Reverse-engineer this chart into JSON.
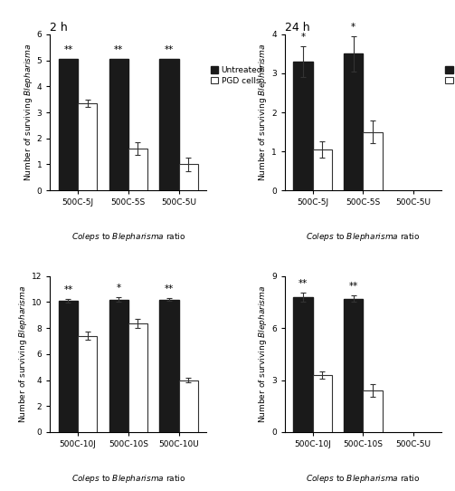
{
  "subplots": [
    {
      "title": "2 h",
      "ylim": [
        0,
        6
      ],
      "yticks": [
        0,
        1,
        2,
        3,
        4,
        5,
        6
      ],
      "groups": [
        "500C-5J",
        "500C-5S",
        "500C-5U"
      ],
      "untreated_vals": [
        5.05,
        5.05,
        5.05
      ],
      "untreated_err": [
        0.0,
        0.0,
        0.0
      ],
      "pgd_vals": [
        3.35,
        1.6,
        1.0
      ],
      "pgd_err": [
        0.15,
        0.25,
        0.25
      ],
      "sig_labels": [
        "**",
        "**",
        "**"
      ],
      "show_legend": true,
      "has_pgd": [
        true,
        true,
        true
      ],
      "has_untreated": [
        true,
        true,
        true
      ]
    },
    {
      "title": "24 h",
      "ylim": [
        0,
        4
      ],
      "yticks": [
        0,
        1,
        2,
        3,
        4
      ],
      "groups": [
        "500C-5J",
        "500C-5S",
        "500C-5U"
      ],
      "untreated_vals": [
        3.3,
        3.5,
        0
      ],
      "untreated_err": [
        0.4,
        0.45,
        0
      ],
      "pgd_vals": [
        1.05,
        1.5,
        0
      ],
      "pgd_err": [
        0.2,
        0.3,
        0
      ],
      "sig_labels": [
        "*",
        "*",
        ""
      ],
      "show_legend": true,
      "has_pgd": [
        true,
        true,
        false
      ],
      "has_untreated": [
        true,
        true,
        false
      ]
    },
    {
      "title": "",
      "ylim": [
        0,
        12
      ],
      "yticks": [
        0,
        2,
        4,
        6,
        8,
        10,
        12
      ],
      "groups": [
        "500C-10J",
        "500C-10S",
        "500C-10U"
      ],
      "untreated_vals": [
        10.1,
        10.2,
        10.2
      ],
      "untreated_err": [
        0.12,
        0.15,
        0.12
      ],
      "pgd_vals": [
        7.4,
        8.35,
        4.0
      ],
      "pgd_err": [
        0.3,
        0.35,
        0.2
      ],
      "sig_labels": [
        "**",
        "*",
        "**"
      ],
      "show_legend": false,
      "has_pgd": [
        true,
        true,
        true
      ],
      "has_untreated": [
        true,
        true,
        true
      ]
    },
    {
      "title": "",
      "ylim": [
        0,
        9
      ],
      "yticks": [
        0,
        3,
        6,
        9
      ],
      "groups": [
        "500C-10J",
        "500C-10S",
        "500C-5U"
      ],
      "untreated_vals": [
        7.8,
        7.7,
        0
      ],
      "untreated_err": [
        0.25,
        0.2,
        0
      ],
      "pgd_vals": [
        3.3,
        2.4,
        0
      ],
      "pgd_err": [
        0.2,
        0.35,
        0
      ],
      "sig_labels": [
        "**",
        "**",
        ""
      ],
      "show_legend": false,
      "has_pgd": [
        true,
        true,
        false
      ],
      "has_untreated": [
        true,
        true,
        false
      ]
    }
  ],
  "bar_width": 0.38,
  "untreated_color": "#1a1a1a",
  "pgd_color": "#ffffff",
  "pgd_edgecolor": "#333333",
  "fontsize_title": 9,
  "fontsize_tick": 6.5,
  "fontsize_label": 6.5,
  "fontsize_legend": 6.5,
  "fontsize_sig": 7.5,
  "legend_label_untreated": "Untreated",
  "legend_label_pgd": "PGD cells"
}
